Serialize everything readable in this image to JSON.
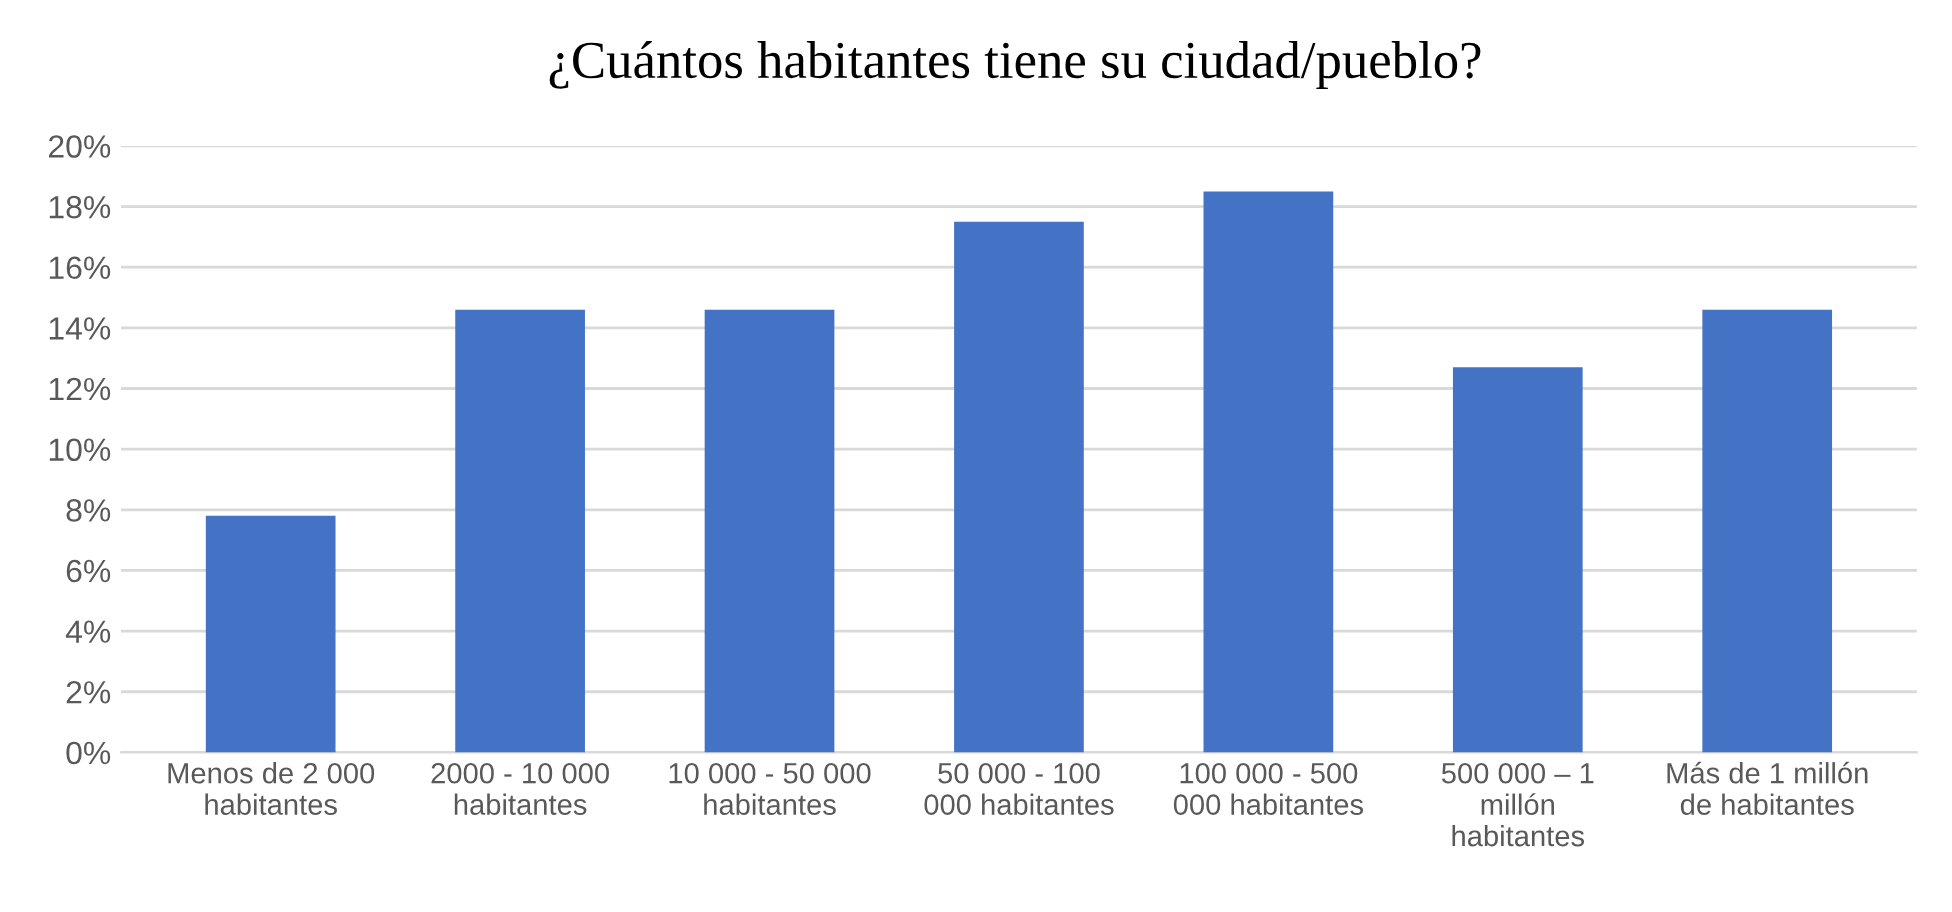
{
  "chart_data": {
    "type": "bar",
    "title": "¿Cuántos habitantes tiene su ciudad/pueblo?",
    "categories": [
      "Menos de 2 000\nhabitantes",
      "2000 - 10 000\nhabitantes",
      "10 000 - 50 000\nhabitantes",
      "50 000 - 100\n000 habitantes",
      "100 000 - 500\n000 habitantes",
      "500 000 – 1\nmillón\nhabitantes",
      "Más de 1 millón\nde habitantes"
    ],
    "values": [
      7.8,
      14.6,
      14.6,
      17.5,
      18.5,
      12.7,
      14.6
    ],
    "color": "#4472c4",
    "ylim": [
      0,
      20
    ],
    "yticks": [
      {
        "value": 0,
        "label": "0%"
      },
      {
        "value": 2,
        "label": "2%"
      },
      {
        "value": 4,
        "label": "4%"
      },
      {
        "value": 6,
        "label": "6%"
      },
      {
        "value": 8,
        "label": "8%"
      },
      {
        "value": 10,
        "label": "10%"
      },
      {
        "value": 12,
        "label": "12%"
      },
      {
        "value": 14,
        "label": "14%"
      },
      {
        "value": 16,
        "label": "16%"
      },
      {
        "value": 18,
        "label": "18%"
      },
      {
        "value": 20,
        "label": "20%"
      }
    ],
    "grid": "y"
  }
}
